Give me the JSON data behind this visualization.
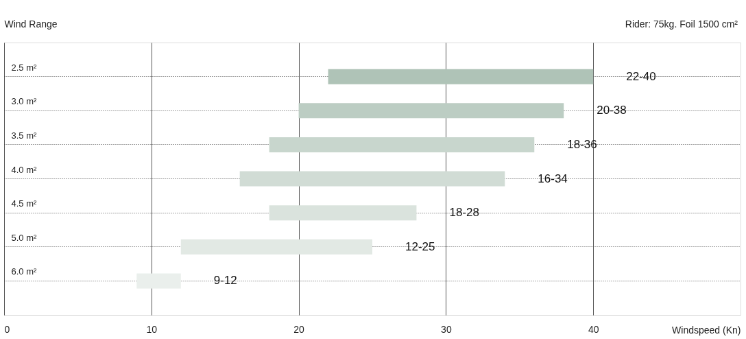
{
  "chart_data": {
    "type": "bar",
    "orientation": "horizontal",
    "ylabel": "Wind Range",
    "xlabel": "Windspeed (Kn)",
    "annotations": [
      "Rider: 75kg. Foil 1500 cm²"
    ],
    "categories": [
      "2.5 m²",
      "3.0 m²",
      "3.5 m²",
      "4.0 m²",
      "4.5 m²",
      "5.0 m²",
      "6.0 m²"
    ],
    "base": [
      22,
      20,
      18,
      16,
      18,
      12,
      9
    ],
    "values": [
      18,
      18,
      18,
      18,
      10,
      13,
      3
    ],
    "value_labels": [
      "22-40",
      "20-38",
      "18-36",
      "16-34",
      "18-28",
      "12-25",
      "9-12"
    ],
    "colors": [
      "#afc3b7",
      "#bccdc3",
      "#c8d6cd",
      "#d1dcd5",
      "#dae3dd",
      "#e2e9e4",
      "#eaefec"
    ],
    "xlim": [
      0,
      50
    ],
    "xticks": [
      0,
      10,
      20,
      30,
      40
    ],
    "grid": true
  }
}
